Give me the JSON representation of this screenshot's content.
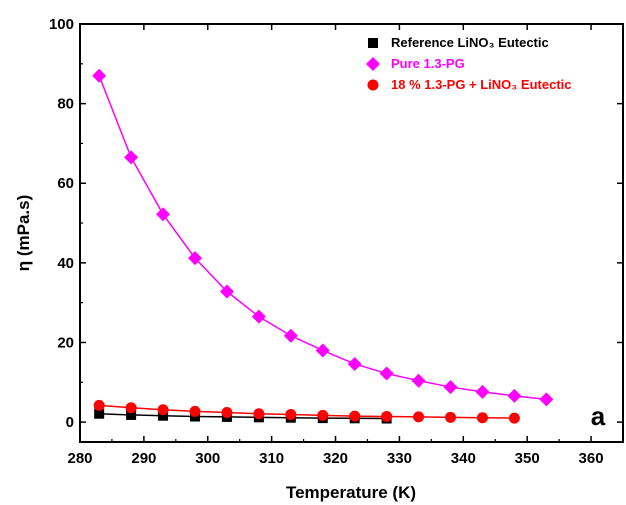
{
  "chart_data": {
    "type": "line",
    "xlabel": "Temperature (K)",
    "ylabel": "η (mPa.s)",
    "xlim": [
      280,
      365
    ],
    "ylim": [
      -5,
      100
    ],
    "xticks": [
      280,
      290,
      300,
      310,
      320,
      330,
      340,
      350,
      360
    ],
    "yticks": [
      0,
      20,
      40,
      60,
      80,
      100
    ],
    "legend_position": "top-right",
    "panel_label": "a",
    "series": [
      {
        "name": "Reference LiNO₃ Eutectic",
        "color": "#000000",
        "marker": "square",
        "x": [
          283,
          288,
          293,
          298,
          303,
          308,
          313,
          318,
          323,
          328
        ],
        "y": [
          2.1,
          1.8,
          1.6,
          1.4,
          1.3,
          1.2,
          1.1,
          1.0,
          0.95,
          0.9
        ]
      },
      {
        "name": "Pure 1.3-PG",
        "color": "#ff00ff",
        "marker": "diamond",
        "x": [
          283,
          288,
          293,
          298,
          303,
          308,
          313,
          318,
          323,
          328,
          333,
          338,
          343,
          348,
          353
        ],
        "y": [
          87,
          66.5,
          52.2,
          41.2,
          32.8,
          26.5,
          21.7,
          18.0,
          14.6,
          12.2,
          10.4,
          8.8,
          7.6,
          6.6,
          5.7
        ]
      },
      {
        "name": "18 % 1.3-PG + LiNO₃ Eutectic",
        "color": "#ff0000",
        "marker": "circle",
        "x": [
          283,
          288,
          293,
          298,
          303,
          308,
          313,
          318,
          323,
          328,
          333,
          338,
          343,
          348
        ],
        "y": [
          4.2,
          3.6,
          3.1,
          2.7,
          2.4,
          2.1,
          1.9,
          1.7,
          1.5,
          1.4,
          1.3,
          1.2,
          1.1,
          1.0
        ]
      }
    ]
  }
}
